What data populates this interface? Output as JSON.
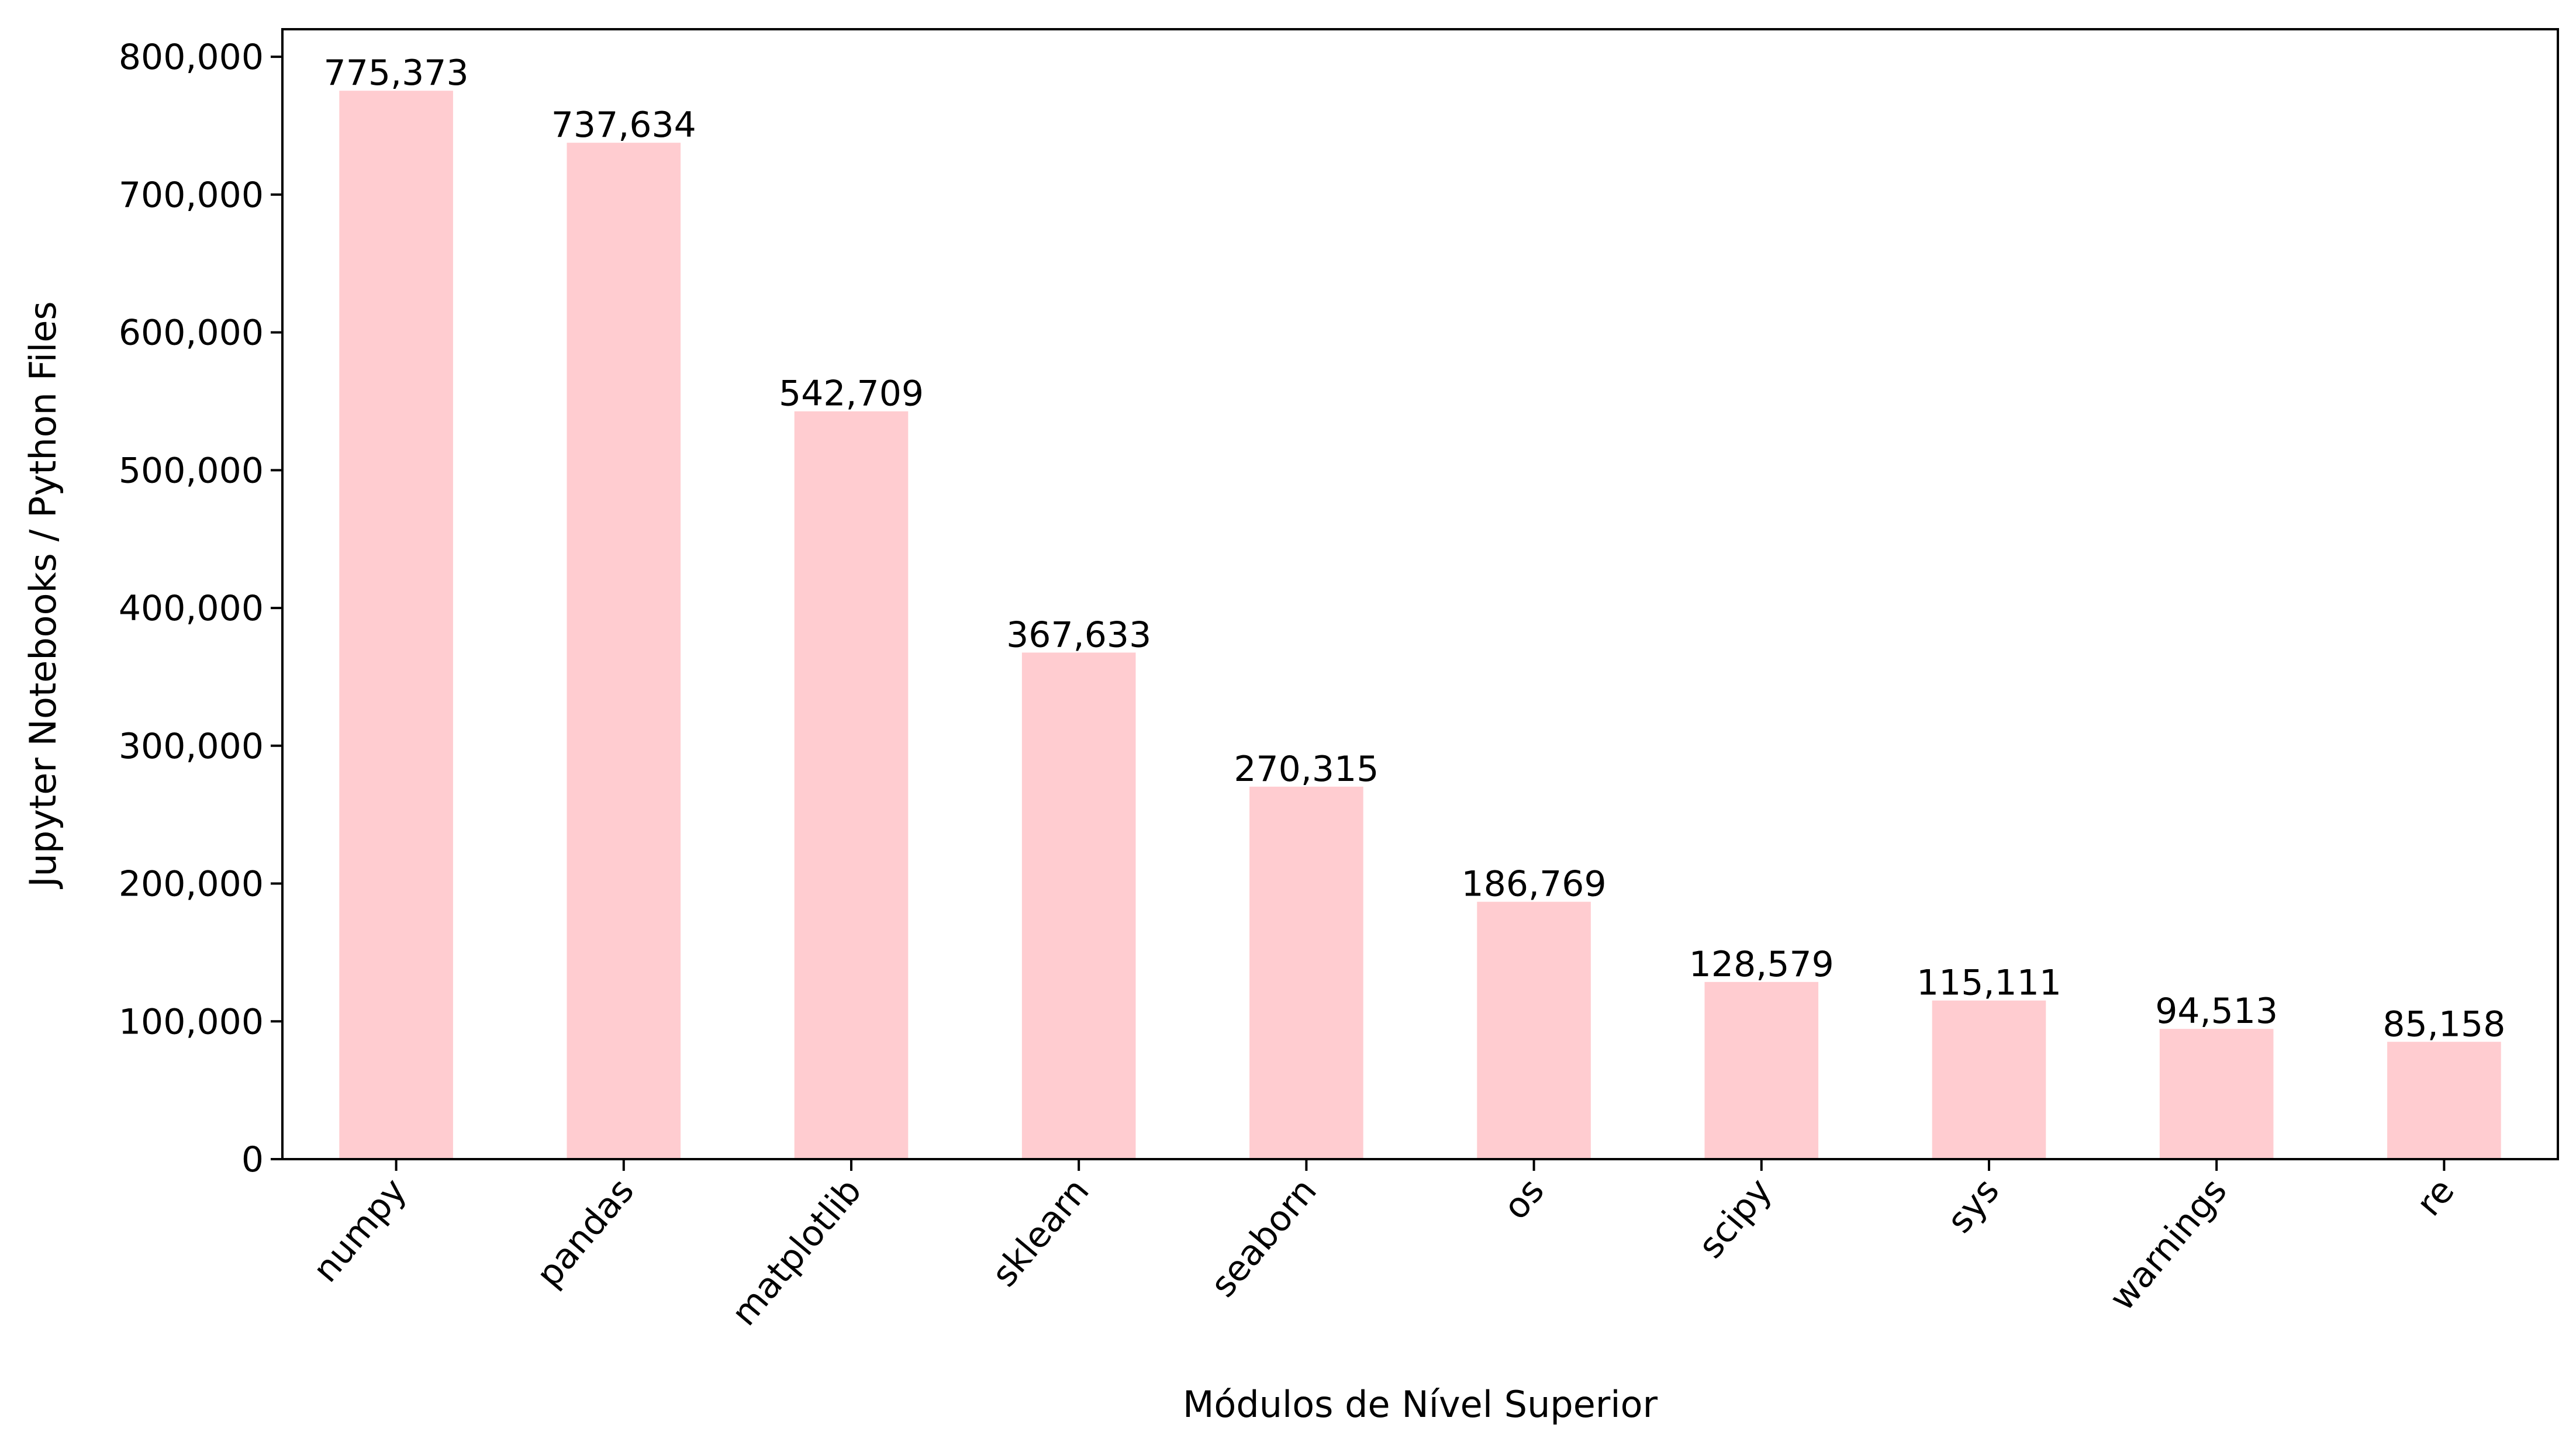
{
  "chart_data": {
    "type": "bar",
    "categories": [
      "numpy",
      "pandas",
      "matplotlib",
      "sklearn",
      "seaborn",
      "os",
      "scipy",
      "sys",
      "warnings",
      "re"
    ],
    "values": [
      775373,
      737634,
      542709,
      367633,
      270315,
      186769,
      128579,
      115111,
      94513,
      85158
    ],
    "data_labels": [
      "775,373",
      "737,634",
      "542,709",
      "367,633",
      "270,315",
      "186,769",
      "128,579",
      "115,111",
      "94,513",
      "85,158"
    ],
    "xlabel": "Módulos de Nível Superior",
    "ylabel": "Jupyter Notebooks / Python Files",
    "ylim": [
      0,
      820000
    ],
    "yticks": [
      0,
      100000,
      200000,
      300000,
      400000,
      500000,
      600000,
      700000,
      800000
    ],
    "ytick_labels": [
      "0",
      "100,000",
      "200,000",
      "300,000",
      "400,000",
      "500,000",
      "600,000",
      "700,000",
      "800,000"
    ],
    "bar_color": "#ffccd0",
    "grid": false,
    "legend": "none"
  }
}
